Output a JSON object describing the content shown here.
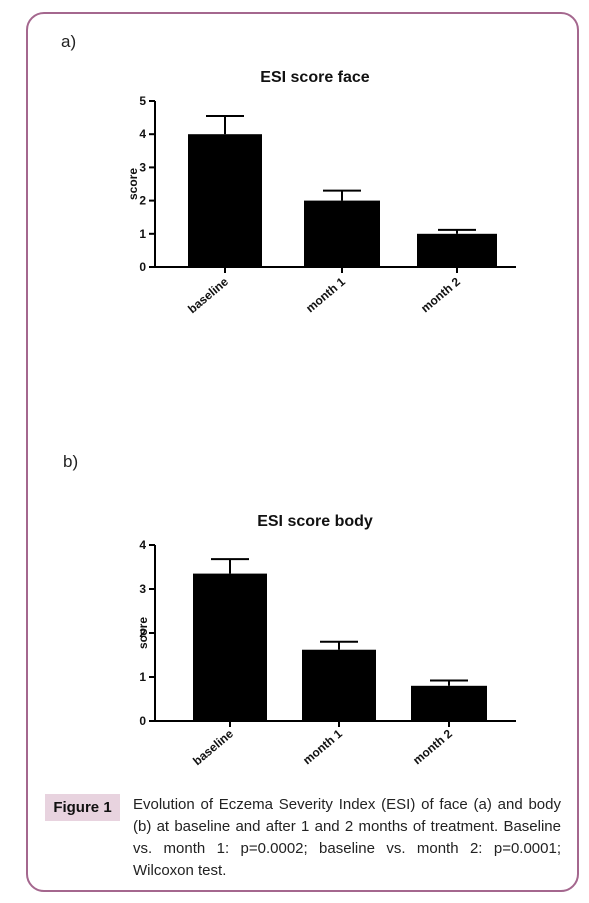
{
  "panels": [
    {
      "label": "a)"
    },
    {
      "label": "b)"
    }
  ],
  "chart_data": [
    {
      "type": "bar",
      "title": "ESI score face",
      "xlabel": "",
      "ylabel": "score",
      "categories": [
        "baseline",
        "month 1",
        "month 2"
      ],
      "values": [
        4.0,
        2.0,
        1.0
      ],
      "error": [
        0.55,
        0.3,
        0.12
      ],
      "ylim": [
        0,
        5
      ],
      "yticks": [
        0,
        1,
        2,
        3,
        4,
        5
      ],
      "bar_color": "#000000"
    },
    {
      "type": "bar",
      "title": "ESI score body",
      "xlabel": "",
      "ylabel": "score",
      "categories": [
        "baseline",
        "month 1",
        "month 2"
      ],
      "values": [
        3.35,
        1.62,
        0.8
      ],
      "error": [
        0.33,
        0.18,
        0.12
      ],
      "ylim": [
        0,
        4
      ],
      "yticks": [
        0,
        1,
        2,
        3,
        4
      ],
      "bar_color": "#000000"
    }
  ],
  "figure": {
    "badge": "Figure 1",
    "caption": "Evolution of Eczema Severity Index (ESI) of face (a) and body (b) at baseline and after 1 and 2 months of treatment. Baseline vs. month 1: p=0.0002; baseline vs. month 2: p=0.0001; Wilcoxon test.",
    "frame_color": "#a4678e",
    "badge_color": "#e8d3df"
  }
}
